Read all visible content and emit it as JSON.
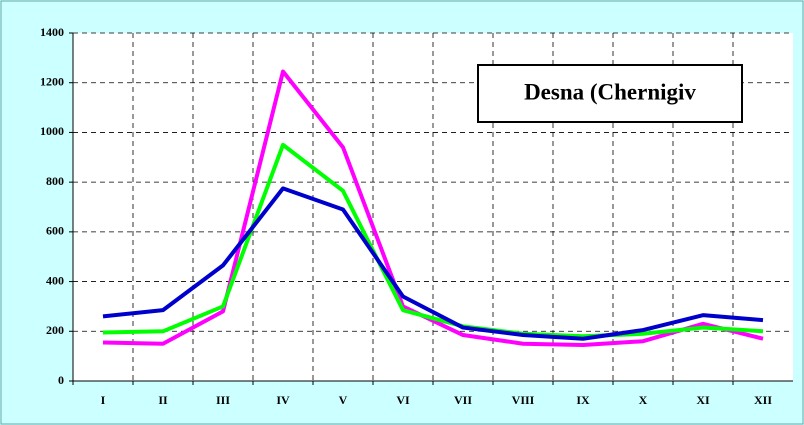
{
  "chart_data": {
    "type": "line",
    "title": "Desna (Chernigiv",
    "categories": [
      "I",
      "II",
      "III",
      "IV",
      "V",
      "VI",
      "VII",
      "VIII",
      "IX",
      "X",
      "XI",
      "XII"
    ],
    "series": [
      {
        "color": "#ff00ff",
        "values": [
          155,
          150,
          280,
          1245,
          940,
          300,
          185,
          150,
          145,
          160,
          230,
          170
        ]
      },
      {
        "color": "#00ff00",
        "values": [
          195,
          200,
          300,
          950,
          765,
          285,
          220,
          190,
          180,
          190,
          215,
          200
        ]
      },
      {
        "color": "#0000cc",
        "values": [
          260,
          285,
          465,
          775,
          690,
          340,
          215,
          185,
          170,
          205,
          265,
          245
        ]
      }
    ],
    "ylim": [
      0,
      1400
    ],
    "yticks": [
      0,
      200,
      400,
      600,
      800,
      1000,
      1200,
      1400
    ],
    "grid": true
  }
}
